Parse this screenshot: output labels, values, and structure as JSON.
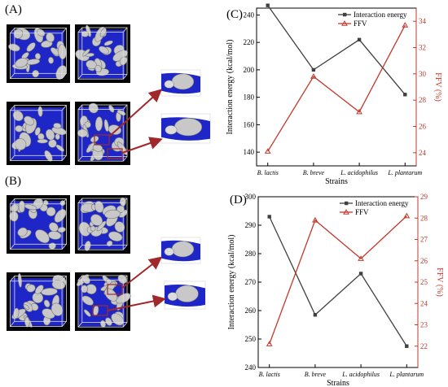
{
  "panels": {
    "a": "(A)",
    "b": "(B)",
    "c": "(C)",
    "d": "(D)"
  },
  "colors": {
    "energy": "#404040",
    "ffv": "#c0392b",
    "void": "#1f26c8",
    "polymer": "#c8c8c8",
    "arrow": "#a0282a",
    "box_bg": "#050505"
  },
  "chart_data": [
    {
      "type": "line",
      "panel": "(C)",
      "categories": [
        "B. lactis",
        "B. breve",
        "L. acidophilus",
        "L. plantarum"
      ],
      "xlabel": "Strains",
      "ylabel": "Interaction energy (kcal/mol)",
      "y2label": "FFV (%)",
      "ylim": [
        130,
        245
      ],
      "yticks": [
        140,
        160,
        180,
        200,
        220,
        240
      ],
      "y2lim": [
        23,
        35
      ],
      "y2ticks": [
        24,
        26,
        28,
        30,
        32,
        34
      ],
      "legend_position": "top-right",
      "series": [
        {
          "name": "Interaction energy",
          "axis": "left",
          "marker": "square",
          "values": [
            247,
            200,
            222,
            182
          ]
        },
        {
          "name": "FFV",
          "axis": "right",
          "marker": "triangle",
          "values": [
            24.1,
            29.8,
            27.1,
            33.7
          ]
        }
      ]
    },
    {
      "type": "line",
      "panel": "(D)",
      "categories": [
        "B. lactis",
        "B. breve",
        "L. acidophilus",
        "L. plantarum"
      ],
      "xlabel": "Strains",
      "ylabel": "Interaction energy (kcal/mol)",
      "y2label": "FFV (%)",
      "ylim": [
        240,
        300
      ],
      "yticks": [
        240,
        250,
        260,
        270,
        280,
        290,
        300
      ],
      "y2lim": [
        21,
        29
      ],
      "y2ticks": [
        22,
        23,
        24,
        25,
        26,
        27,
        28,
        29
      ],
      "legend_position": "top-right",
      "series": [
        {
          "name": "Interaction energy",
          "axis": "left",
          "marker": "square",
          "values": [
            293,
            258.5,
            273,
            247.5
          ]
        },
        {
          "name": "FFV",
          "axis": "right",
          "marker": "triangle",
          "values": [
            22.1,
            27.9,
            26.1,
            28.1
          ]
        }
      ]
    }
  ]
}
